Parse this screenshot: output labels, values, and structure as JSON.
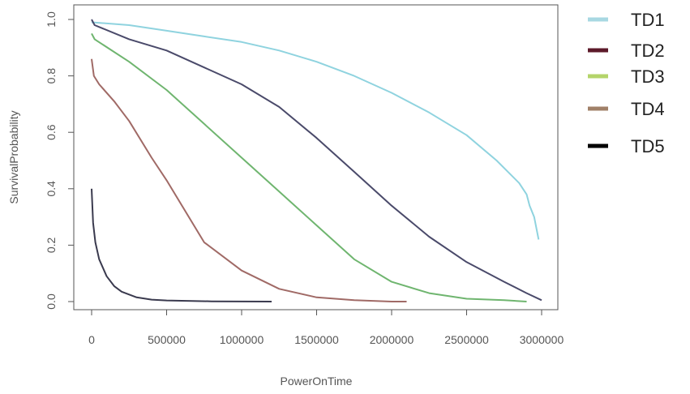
{
  "chart_data": {
    "type": "line",
    "xlabel": "PowerOnTime",
    "ylabel": "SurvivalProbability",
    "xlim": [
      0,
      3000000
    ],
    "ylim": [
      0,
      1
    ],
    "x_ticks": [
      "0",
      "500000",
      "1000000",
      "1500000",
      "2000000",
      "2500000",
      "3000000"
    ],
    "x_tick_values": [
      0,
      500000,
      1000000,
      1500000,
      2000000,
      2500000,
      3000000
    ],
    "y_ticks": [
      "0.0",
      "0.2",
      "0.4",
      "0.6",
      "0.8",
      "1.0"
    ],
    "y_tick_values": [
      0,
      0.2,
      0.4,
      0.6,
      0.8,
      1.0
    ],
    "grid": false,
    "legend_position": "right",
    "series": [
      {
        "name": "TD1",
        "color": "#8fd3df",
        "legend_color": "#a8d8e2",
        "x": [
          0,
          250000,
          500000,
          750000,
          1000000,
          1250000,
          1500000,
          1750000,
          2000000,
          2250000,
          2500000,
          2700000,
          2850000,
          2900000,
          2920000,
          2950000,
          2980000
        ],
        "y": [
          0.99,
          0.98,
          0.96,
          0.94,
          0.92,
          0.89,
          0.85,
          0.8,
          0.74,
          0.67,
          0.59,
          0.5,
          0.42,
          0.38,
          0.34,
          0.3,
          0.22
        ]
      },
      {
        "name": "TD2",
        "color": "#4a4a6a",
        "legend_color": "#5c1a2a",
        "x": [
          0,
          20000,
          250000,
          500000,
          750000,
          1000000,
          1250000,
          1500000,
          1750000,
          2000000,
          2250000,
          2500000,
          2750000,
          2900000,
          3000000
        ],
        "y": [
          1.0,
          0.98,
          0.93,
          0.89,
          0.83,
          0.77,
          0.69,
          0.58,
          0.46,
          0.34,
          0.23,
          0.14,
          0.07,
          0.03,
          0.005
        ]
      },
      {
        "name": "TD3",
        "color": "#6fb56f",
        "legend_color": "#b4d46a",
        "x": [
          0,
          20000,
          250000,
          500000,
          750000,
          1000000,
          1250000,
          1500000,
          1750000,
          2000000,
          2250000,
          2500000,
          2750000,
          2900000
        ],
        "y": [
          0.95,
          0.93,
          0.85,
          0.75,
          0.63,
          0.51,
          0.39,
          0.27,
          0.15,
          0.07,
          0.03,
          0.01,
          0.005,
          0.0
        ]
      },
      {
        "name": "TD4",
        "color": "#a06a66",
        "legend_color": "#a08068",
        "x": [
          0,
          15000,
          50000,
          150000,
          250000,
          400000,
          500000,
          750000,
          1000000,
          1250000,
          1500000,
          1750000,
          2000000,
          2100000
        ],
        "y": [
          0.86,
          0.8,
          0.77,
          0.71,
          0.64,
          0.51,
          0.43,
          0.21,
          0.11,
          0.045,
          0.015,
          0.005,
          0.0,
          0.0
        ]
      },
      {
        "name": "TD5",
        "color": "#3a3a4e",
        "legend_color": "#000000",
        "x": [
          0,
          10000,
          25000,
          50000,
          100000,
          150000,
          200000,
          300000,
          400000,
          500000,
          800000,
          1200000
        ],
        "y": [
          0.4,
          0.28,
          0.21,
          0.15,
          0.09,
          0.055,
          0.035,
          0.015,
          0.007,
          0.004,
          0.001,
          0.0
        ]
      }
    ]
  }
}
